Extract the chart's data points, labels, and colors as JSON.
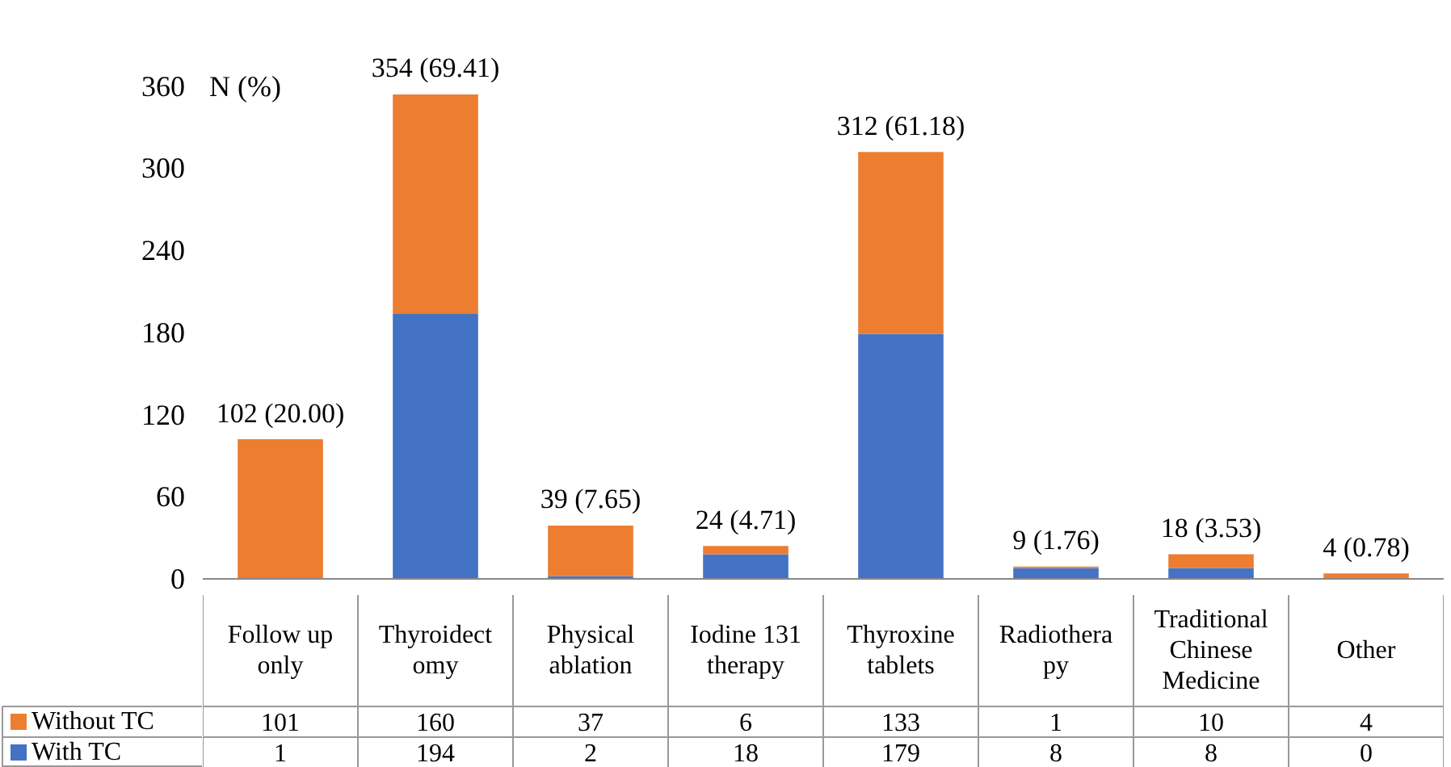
{
  "chart_data": {
    "type": "bar",
    "stacked": true,
    "ylabel": "N (%)",
    "categories": [
      "Follow up\nonly",
      "Thyroidect\nomy",
      "Physical\nablation",
      "Iodine 131\ntherapy",
      "Thyroxine\ntablets",
      "Radiothera\npy",
      "Traditional\nChinese\nMedicine",
      "Other"
    ],
    "series": [
      {
        "name": "With TC",
        "color": "#4472c4",
        "values": [
          1,
          194,
          2,
          18,
          179,
          8,
          8,
          0
        ]
      },
      {
        "name": "Without TC",
        "color": "#ed7d31",
        "values": [
          101,
          160,
          37,
          6,
          133,
          1,
          10,
          4
        ]
      }
    ],
    "totals": [
      "102 (20.00)",
      "354 (69.41)",
      "39 (7.65)",
      "24 (4.71)",
      "312 (61.18)",
      "9 (1.76)",
      "18 (3.53)",
      "4 (0.78)"
    ],
    "data_labels": true,
    "ylim": [
      0,
      360
    ],
    "yticks": [
      0,
      60,
      120,
      180,
      240,
      300,
      360
    ],
    "grid": false,
    "legend": "bottom left"
  }
}
